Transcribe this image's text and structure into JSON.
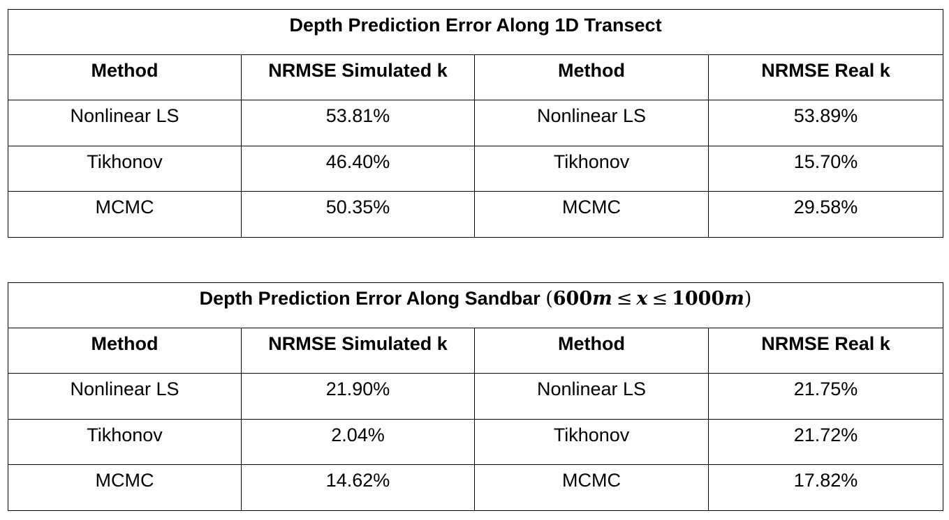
{
  "tables": [
    {
      "title": "Depth Prediction Error Along 1D Transect",
      "headers": [
        "Method",
        "NRMSE Simulated k",
        "Method",
        "NRMSE Real k"
      ],
      "rows": [
        [
          "Nonlinear LS",
          "53.81%",
          "Nonlinear LS",
          "53.89%"
        ],
        [
          "Tikhonov",
          "46.40%",
          "Tikhonov",
          "15.70%"
        ],
        [
          "MCMC",
          "50.35%",
          "MCMC",
          "29.58%"
        ]
      ]
    },
    {
      "title": "Depth Prediction Error Along Sandbar",
      "title_formula": {
        "open": "(",
        "lower": "600",
        "lower_unit": "m",
        "rel1": "≤",
        "var": "x",
        "rel2": "≤",
        "upper": "1000",
        "upper_unit": "m",
        "close": ")"
      },
      "headers": [
        "Method",
        "NRMSE Simulated k",
        "Method",
        "NRMSE Real k"
      ],
      "rows": [
        [
          "Nonlinear LS",
          "21.90%",
          "Nonlinear LS",
          "21.75%"
        ],
        [
          "Tikhonov",
          "2.04%",
          "Tikhonov",
          "21.72%"
        ],
        [
          "MCMC",
          "14.62%",
          "MCMC",
          "17.82%"
        ]
      ]
    }
  ]
}
